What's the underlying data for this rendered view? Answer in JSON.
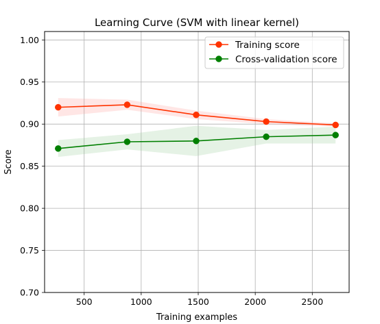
{
  "chart_data": {
    "type": "line",
    "title": "Learning Curve (SVM with linear kernel)",
    "xlabel": "Training examples",
    "ylabel": "Score",
    "xlim": [
      153,
      2823
    ],
    "ylim": [
      0.7,
      1.01
    ],
    "xticks": [
      500,
      1000,
      1500,
      2000,
      2500
    ],
    "yticks": [
      0.7,
      0.75,
      0.8,
      0.85,
      0.9,
      0.95,
      1.0
    ],
    "xtick_labels": [
      "500",
      "1000",
      "1500",
      "2000",
      "2500"
    ],
    "ytick_labels": [
      "0.70",
      "0.75",
      "0.80",
      "0.85",
      "0.90",
      "0.95",
      "1.00"
    ],
    "grid": true,
    "legend_position": "top-right",
    "x": [
      272,
      877,
      1482,
      2096,
      2704
    ],
    "series": [
      {
        "name": "Training score",
        "color": "#ff3300",
        "band_color": "#ff9a99",
        "values": [
          0.92,
          0.923,
          0.911,
          0.903,
          0.899
        ],
        "lower": [
          0.909,
          0.917,
          0.906,
          0.9,
          0.897
        ],
        "upper": [
          0.931,
          0.929,
          0.916,
          0.906,
          0.901
        ]
      },
      {
        "name": "Cross-validation score",
        "color": "#007f00",
        "band_color": "#99cc99",
        "values": [
          0.871,
          0.879,
          0.88,
          0.885,
          0.887
        ],
        "lower": [
          0.861,
          0.87,
          0.862,
          0.877,
          0.877
        ],
        "upper": [
          0.881,
          0.888,
          0.898,
          0.893,
          0.897
        ]
      }
    ]
  }
}
